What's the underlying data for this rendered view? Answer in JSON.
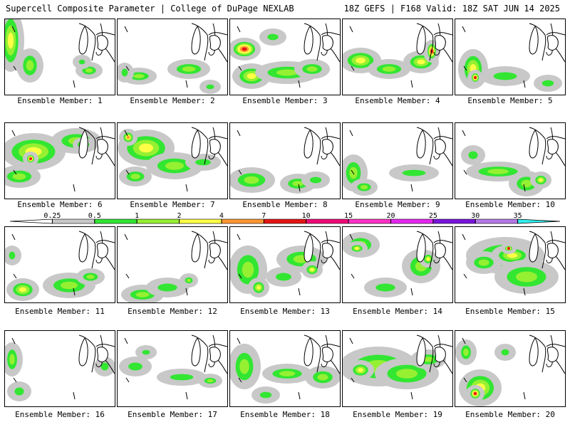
{
  "header": {
    "left": "Supercell Composite Parameter | College of DuPage NEXLAB",
    "right": "18Z GEFS | F168 Valid: 18Z SAT JUN 14 2025"
  },
  "colorbar": {
    "levels": [
      {
        "label": "0.25",
        "color": "#c8c8c8"
      },
      {
        "label": "0.5",
        "color": "#32e632"
      },
      {
        "label": "1",
        "color": "#96f032"
      },
      {
        "label": "2",
        "color": "#ffff46"
      },
      {
        "label": "4",
        "color": "#ff9632"
      },
      {
        "label": "7",
        "color": "#e61414"
      },
      {
        "label": "10",
        "color": "#f00a78"
      },
      {
        "label": "15",
        "color": "#ff32c8"
      },
      {
        "label": "20",
        "color": "#e628f0"
      },
      {
        "label": "25",
        "color": "#7a14dc"
      },
      {
        "label": "30",
        "color": "#b478e6"
      },
      {
        "label": "35",
        "color": "#32f0f0"
      }
    ]
  },
  "panels": [
    {
      "label": "Ensemble Member: 1",
      "blobs": [
        [
          8,
          30,
          14,
          40,
          2
        ],
        [
          35,
          65,
          14,
          20,
          1
        ],
        [
          118,
          72,
          14,
          8,
          1
        ],
        [
          108,
          60,
          8,
          6,
          0
        ]
      ]
    },
    {
      "label": "Ensemble Member: 2",
      "blobs": [
        [
          100,
          70,
          25,
          10,
          1
        ],
        [
          30,
          80,
          20,
          8,
          1
        ],
        [
          10,
          75,
          8,
          10,
          0
        ],
        [
          130,
          95,
          10,
          6,
          0
        ]
      ]
    },
    {
      "label": "Ensemble Member: 3",
      "blobs": [
        [
          20,
          42,
          18,
          12,
          4
        ],
        [
          30,
          80,
          22,
          14,
          2
        ],
        [
          80,
          75,
          40,
          12,
          1
        ],
        [
          115,
          70,
          20,
          10,
          1
        ],
        [
          60,
          25,
          14,
          8,
          0
        ]
      ]
    },
    {
      "label": "Ensemble Member: 4",
      "blobs": [
        [
          25,
          58,
          24,
          14,
          2
        ],
        [
          65,
          70,
          25,
          10,
          1
        ],
        [
          110,
          60,
          20,
          12,
          2
        ],
        [
          125,
          45,
          7,
          12,
          4
        ]
      ]
    },
    {
      "label": "Ensemble Member: 5",
      "blobs": [
        [
          25,
          70,
          16,
          24,
          2
        ],
        [
          28,
          82,
          6,
          7,
          4
        ],
        [
          70,
          80,
          30,
          10,
          0
        ],
        [
          130,
          90,
          15,
          8,
          0
        ]
      ]
    },
    {
      "label": "Ensemble Member: 6",
      "blobs": [
        [
          40,
          40,
          40,
          22,
          2
        ],
        [
          36,
          50,
          6,
          6,
          4
        ],
        [
          100,
          25,
          30,
          14,
          1
        ],
        [
          110,
          30,
          10,
          6,
          3
        ],
        [
          20,
          75,
          25,
          12,
          1
        ]
      ]
    },
    {
      "label": "Ensemble Member: 7",
      "blobs": [
        [
          40,
          35,
          35,
          22,
          2
        ],
        [
          15,
          20,
          8,
          8,
          3
        ],
        [
          80,
          60,
          35,
          15,
          1
        ],
        [
          25,
          75,
          18,
          10,
          1
        ],
        [
          120,
          55,
          20,
          8,
          0
        ]
      ]
    },
    {
      "label": "Ensemble Member: 8",
      "blobs": [
        [
          30,
          80,
          28,
          14,
          1
        ],
        [
          95,
          85,
          20,
          10,
          1
        ],
        [
          120,
          80,
          15,
          8,
          0
        ]
      ]
    },
    {
      "label": "Ensemble Member: 9",
      "blobs": [
        [
          15,
          70,
          15,
          22,
          1
        ],
        [
          30,
          90,
          14,
          8,
          1
        ],
        [
          100,
          70,
          30,
          8,
          0
        ]
      ]
    },
    {
      "label": "Ensemble Member: 10",
      "blobs": [
        [
          60,
          68,
          40,
          10,
          1
        ],
        [
          100,
          85,
          20,
          14,
          1
        ],
        [
          120,
          80,
          10,
          8,
          2
        ],
        [
          25,
          45,
          12,
          10,
          0
        ]
      ]
    },
    {
      "label": "Ensemble Member: 11",
      "blobs": [
        [
          25,
          88,
          18,
          12,
          2
        ],
        [
          90,
          82,
          32,
          14,
          1
        ],
        [
          120,
          70,
          15,
          8,
          1
        ],
        [
          10,
          40,
          8,
          10,
          0
        ]
      ]
    },
    {
      "label": "Ensemble Member: 12",
      "blobs": [
        [
          35,
          95,
          25,
          10,
          1
        ],
        [
          70,
          85,
          25,
          10,
          0
        ],
        [
          100,
          75,
          8,
          6,
          1
        ]
      ]
    },
    {
      "label": "Ensemble Member: 13",
      "blobs": [
        [
          25,
          60,
          22,
          30,
          1
        ],
        [
          100,
          45,
          30,
          15,
          1
        ],
        [
          115,
          60,
          10,
          8,
          2
        ],
        [
          40,
          85,
          10,
          10,
          2
        ],
        [
          75,
          70,
          20,
          10,
          0
        ]
      ]
    },
    {
      "label": "Ensemble Member: 14",
      "blobs": [
        [
          25,
          25,
          22,
          14,
          1
        ],
        [
          20,
          30,
          10,
          6,
          2
        ],
        [
          110,
          55,
          22,
          20,
          1
        ],
        [
          120,
          45,
          8,
          8,
          2
        ],
        [
          60,
          85,
          25,
          10,
          0
        ]
      ]
    },
    {
      "label": "Ensemble Member: 15",
      "blobs": [
        [
          70,
          40,
          50,
          22,
          1
        ],
        [
          80,
          40,
          25,
          12,
          2
        ],
        [
          100,
          70,
          40,
          20,
          1
        ],
        [
          40,
          50,
          20,
          12,
          1
        ],
        [
          75,
          30,
          6,
          4,
          4
        ]
      ]
    },
    {
      "label": "Ensemble Member: 16",
      "blobs": [
        [
          10,
          40,
          10,
          20,
          1
        ],
        [
          20,
          85,
          12,
          10,
          0
        ],
        [
          140,
          50,
          10,
          10,
          0
        ]
      ]
    },
    {
      "label": "Ensemble Member: 17",
      "blobs": [
        [
          25,
          50,
          18,
          10,
          0
        ],
        [
          90,
          65,
          30,
          8,
          0
        ],
        [
          130,
          70,
          12,
          6,
          1
        ],
        [
          40,
          30,
          10,
          6,
          0
        ]
      ]
    },
    {
      "label": "Ensemble Member: 18",
      "blobs": [
        [
          20,
          50,
          18,
          28,
          1
        ],
        [
          80,
          60,
          30,
          10,
          1
        ],
        [
          130,
          65,
          20,
          12,
          1
        ],
        [
          50,
          90,
          15,
          8,
          0
        ]
      ]
    },
    {
      "label": "Ensemble Member: 19",
      "blobs": [
        [
          50,
          50,
          50,
          24,
          1
        ],
        [
          90,
          60,
          40,
          18,
          1
        ],
        [
          120,
          40,
          20,
          10,
          1
        ],
        [
          25,
          55,
          14,
          10,
          2
        ]
      ]
    },
    {
      "label": "Ensemble Member: 20",
      "blobs": [
        [
          35,
          80,
          25,
          22,
          2
        ],
        [
          28,
          88,
          8,
          8,
          4
        ],
        [
          15,
          30,
          10,
          14,
          1
        ],
        [
          70,
          30,
          10,
          8,
          0
        ]
      ]
    }
  ]
}
